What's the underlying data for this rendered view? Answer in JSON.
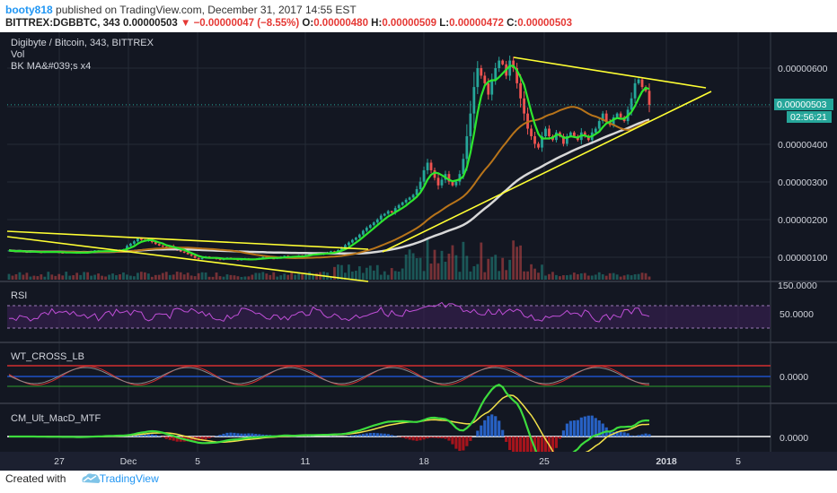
{
  "header": {
    "user": "booty818",
    "published_text": " published on TradingView.com, December 31, 2017 14:55 EST"
  },
  "ticker": {
    "symbol": "BITTREX:DGBBTC, 343",
    "last": "0.00000503",
    "change": "−0.00000047 (−8.55%)",
    "o_label": "O:",
    "o": "0.00000480",
    "h_label": "H:",
    "h": "0.00000509",
    "l_label": "L:",
    "l": "0.00000472",
    "c_label": "C:",
    "c": "0.00000503"
  },
  "legend": {
    "title": "Digibyte / Bitcoin, 343, BITTREX",
    "vol": "Vol",
    "ma": "BK MA&#039;s x4"
  },
  "price_tag": "0.00000503",
  "countdown": "02:56:21",
  "footer": {
    "created": "Created with",
    "brand": "TradingView"
  },
  "colors": {
    "bg": "#131722",
    "grid": "#252b36",
    "up": "#26a69a",
    "down": "#ef5350",
    "yellow": "#ffff33",
    "green": "#2ee62e",
    "orange": "#b8741a",
    "white": "#d8d8d8"
  },
  "chart_data": {
    "type": "candlestick",
    "x_ticks": [
      "27",
      "Dec",
      "5",
      "11",
      "18",
      "25",
      "2018",
      "5"
    ],
    "price_axis_labels": [
      "0.00000600",
      "0.00000400",
      "0.00000300",
      "0.00000200",
      "0.00000100"
    ],
    "ylim": [
      4e-07,
      7e-07
    ],
    "last_price": 5.03e-06,
    "close_series": [
      1.18e-06,
      1.16e-06,
      1.15e-06,
      1.17e-06,
      1.14e-06,
      1.13e-06,
      1.16e-06,
      1.15e-06,
      1.13e-06,
      1.12e-06,
      1.14e-06,
      1.16e-06,
      1.15e-06,
      1.13e-06,
      1.12e-06,
      1.11e-06,
      1.13e-06,
      1.14e-06,
      1.12e-06,
      1.1e-06,
      1.12e-06,
      1.14e-06,
      1.13e-06,
      1.16e-06,
      1.18e-06,
      1.17e-06,
      1.15e-06,
      1.14e-06,
      1.16e-06,
      1.19e-06,
      1.2e-06,
      1.18e-06,
      1.21e-06,
      1.3e-06,
      1.36e-06,
      1.42e-06,
      1.5e-06,
      1.46e-06,
      1.43e-06,
      1.47e-06,
      1.4e-06,
      1.35e-06,
      1.31e-06,
      1.28e-06,
      1.25e-06,
      1.3e-06,
      1.22e-06,
      1.18e-06,
      1.15e-06,
      1.12e-06,
      1.08e-06,
      1.04e-06,
      9.8e-07,
      9.5e-07,
      9.8e-07,
      1.02e-06,
      1e-06,
      9.7e-07,
      9.5e-07,
      9.3e-07,
      9.6e-07,
      9.9e-07,
      9.7e-07,
      9.4e-07,
      9.2e-07,
      9.4e-07,
      9.7e-07,
      9.5e-07,
      9.3e-07,
      9.5e-07,
      9.8e-07,
      1.01e-06,
      9.9e-07,
      9.7e-07,
      9.6e-07,
      9.9e-07,
      1.02e-06,
      1.04e-06,
      1.01e-06,
      9.9e-07,
      1.02e-06,
      1.05e-06,
      1.03e-06,
      1.06e-06,
      1.08e-06,
      1.11e-06,
      1.09e-06,
      1.07e-06,
      1.1e-06,
      1.13e-06,
      1.16e-06,
      1.14e-06,
      1.19e-06,
      1.25e-06,
      1.32e-06,
      1.39e-06,
      1.46e-06,
      1.52e-06,
      1.6e-06,
      1.7e-06,
      1.78e-06,
      1.85e-06,
      1.92e-06,
      2e-06,
      2.1e-06,
      2.15e-06,
      2.22e-06,
      2.18e-06,
      2.3e-06,
      2.38e-06,
      2.45e-06,
      2.52e-06,
      2.58e-06,
      2.65e-06,
      2.8e-06,
      3e-06,
      3.3e-06,
      3.5e-06,
      3.3e-06,
      3.1e-06,
      2.9e-06,
      3.05e-06,
      3.2e-06,
      3e-06,
      2.9e-06,
      3e-06,
      3.2e-06,
      3.6e-06,
      4.2e-06,
      4.8e-06,
      5.5e-06,
      6e-06,
      5.8e-06,
      5.6e-06,
      5.3e-06,
      5.7e-06,
      6e-06,
      6.2e-06,
      6.1e-06,
      5.8e-06,
      6.2e-06,
      6e-06,
      5.6e-06,
      5.2e-06,
      4.8e-06,
      4.4e-06,
      4.2e-06,
      4e-06,
      3.9e-06,
      4.2e-06,
      4.4e-06,
      4.2e-06,
      4.1e-06,
      4.3e-06,
      4.2e-06,
      4e-06,
      4.2e-06,
      4.3e-06,
      4.2e-06,
      4.1e-06,
      4.3e-06,
      4.2e-06,
      4.1e-06,
      4.3e-06,
      4.4e-06,
      4.6e-06,
      4.8e-06,
      4.6e-06,
      4.5e-06,
      4.7e-06,
      4.8e-06,
      4.7e-06,
      4.6e-06,
      4.9e-06,
      5.2e-06,
      5.6e-06,
      5.7e-06,
      5.5e-06,
      5.4e-06,
      5.03e-06
    ],
    "indicators": {
      "rsi_title": "RSI",
      "rsi_label": "50.0000",
      "wt_title": "WT_CROSS_LB",
      "wt_label": "0.0000",
      "macd_title": "CM_Ult_MacD_MTF",
      "macd_label": "0.0000",
      "vol_axis_label": "150.0000"
    }
  }
}
